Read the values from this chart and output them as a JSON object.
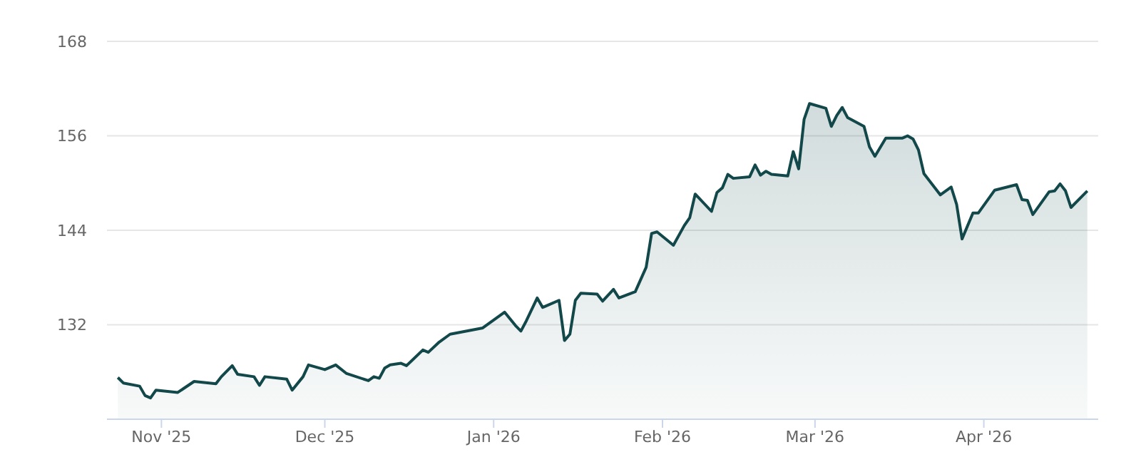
{
  "chart_data": {
    "type": "area",
    "color": "#12484a",
    "grid": "y",
    "xlim": [
      "2025-10-22",
      "2026-04-22"
    ],
    "ylim": [
      120,
      168
    ],
    "yticks": [
      132,
      144,
      156,
      168
    ],
    "xticks": [
      {
        "value": "2025-11-01",
        "label": "Nov '25"
      },
      {
        "value": "2025-12-01",
        "label": "Dec '25"
      },
      {
        "value": "2026-01-01",
        "label": "Jan '26"
      },
      {
        "value": "2026-02-01",
        "label": "Feb '26"
      },
      {
        "value": "2026-03-01",
        "label": "Mar '26"
      },
      {
        "value": "2026-04-01",
        "label": "Apr '26"
      }
    ],
    "x": [
      "2025-10-24",
      "2025-10-25",
      "2025-10-28",
      "2025-10-29",
      "2025-10-30",
      "2025-10-31",
      "2025-11-04",
      "2025-11-07",
      "2025-11-11",
      "2025-11-12",
      "2025-11-14",
      "2025-11-15",
      "2025-11-18",
      "2025-11-19",
      "2025-11-20",
      "2025-11-24",
      "2025-11-25",
      "2025-11-27",
      "2025-11-28",
      "2025-12-01",
      "2025-12-03",
      "2025-12-05",
      "2025-12-09",
      "2025-12-10",
      "2025-12-11",
      "2025-12-12",
      "2025-12-13",
      "2025-12-15",
      "2025-12-16",
      "2025-12-19",
      "2025-12-20",
      "2025-12-22",
      "2025-12-24",
      "2025-12-30",
      "2026-01-03",
      "2026-01-05",
      "2026-01-06",
      "2026-01-07",
      "2026-01-09",
      "2026-01-10",
      "2026-01-13",
      "2026-01-14",
      "2026-01-15",
      "2026-01-16",
      "2026-01-17",
      "2026-01-20",
      "2026-01-21",
      "2026-01-23",
      "2026-01-24",
      "2026-01-27",
      "2026-01-29",
      "2026-01-30",
      "2026-01-31",
      "2026-02-03",
      "2026-02-05",
      "2026-02-06",
      "2026-02-07",
      "2026-02-10",
      "2026-02-11",
      "2026-02-12",
      "2026-02-13",
      "2026-02-14",
      "2026-02-17",
      "2026-02-18",
      "2026-02-19",
      "2026-02-20",
      "2026-02-21",
      "2026-02-24",
      "2026-02-25",
      "2026-02-26",
      "2026-02-27",
      "2026-02-28",
      "2026-03-03",
      "2026-03-04",
      "2026-03-05",
      "2026-03-06",
      "2026-03-07",
      "2026-03-10",
      "2026-03-11",
      "2026-03-12",
      "2026-03-14",
      "2026-03-17",
      "2026-03-18",
      "2026-03-19",
      "2026-03-20",
      "2026-03-21",
      "2026-03-24",
      "2026-03-26",
      "2026-03-27",
      "2026-03-28",
      "2026-03-30",
      "2026-03-31",
      "2026-04-03",
      "2026-04-07",
      "2026-04-08",
      "2026-04-09",
      "2026-04-10",
      "2026-04-13",
      "2026-04-14",
      "2026-04-15",
      "2026-04-16",
      "2026-04-17",
      "2026-04-20"
    ],
    "values": [
      125.3,
      124.6,
      124.2,
      123.0,
      122.7,
      123.7,
      123.4,
      124.8,
      124.5,
      125.4,
      126.8,
      125.7,
      125.4,
      124.3,
      125.4,
      125.1,
      123.7,
      125.4,
      126.9,
      126.3,
      126.9,
      125.8,
      124.9,
      125.4,
      125.2,
      126.5,
      126.9,
      127.1,
      126.8,
      128.8,
      128.5,
      129.8,
      130.8,
      131.6,
      133.6,
      131.9,
      131.2,
      132.5,
      135.4,
      134.2,
      135.1,
      130.0,
      130.8,
      135.1,
      136.0,
      135.9,
      135.0,
      136.5,
      135.4,
      136.2,
      139.3,
      143.6,
      143.8,
      142.1,
      144.6,
      145.6,
      148.6,
      146.4,
      148.8,
      149.4,
      151.1,
      150.6,
      150.8,
      152.3,
      151.0,
      151.5,
      151.1,
      150.9,
      154.0,
      151.8,
      158.1,
      160.1,
      159.5,
      157.2,
      158.6,
      159.6,
      158.3,
      157.2,
      154.6,
      153.4,
      155.7,
      155.7,
      156.0,
      155.6,
      154.2,
      151.2,
      148.5,
      149.5,
      147.3,
      142.9,
      146.2,
      146.2,
      149.1,
      149.8,
      147.9,
      147.8,
      146.0,
      148.9,
      149.0,
      149.9,
      149.0,
      146.9,
      149.0
    ]
  }
}
